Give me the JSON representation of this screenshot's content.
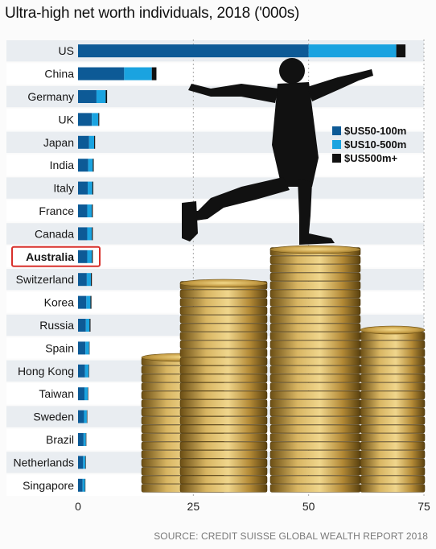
{
  "title": "Ultra-high net worth individuals, 2018 ('000s)",
  "source": "SOURCE: CREDIT SUISSE GLOBAL WEALTH REPORT 2018",
  "colors": {
    "s1": "#0d5a96",
    "s2": "#1aa3e0",
    "s3": "#111111",
    "grid": "#a8a8a8",
    "highlight": "#d8302b",
    "row_a": "#e9edf1",
    "row_b": "#ffffff"
  },
  "chart_data": {
    "type": "bar",
    "orientation": "horizontal",
    "stacked": true,
    "title": "Ultra-high net worth individuals, 2018 ('000s)",
    "categories": [
      "US",
      "China",
      "Germany",
      "UK",
      "Japan",
      "India",
      "Italy",
      "France",
      "Canada",
      "Australia",
      "Switzerland",
      "Korea",
      "Russia",
      "Spain",
      "Hong Kong",
      "Taiwan",
      "Sweden",
      "Brazil",
      "Netherlands",
      "Singapore"
    ],
    "highlight": "Australia",
    "series": [
      {
        "name": "$US50-100m",
        "values": [
          50,
          10,
          4,
          3,
          2.4,
          2.2,
          2.1,
          2,
          2,
          2,
          1.9,
          1.8,
          1.7,
          1.6,
          1.5,
          1.4,
          1.3,
          1.2,
          1.1,
          1
        ]
      },
      {
        "name": "$US10-500m",
        "values": [
          19,
          6,
          2,
          1.4,
          1.1,
          1,
          1,
          1,
          1,
          1,
          0.9,
          0.9,
          0.8,
          0.8,
          0.8,
          0.7,
          0.6,
          0.5,
          0.5,
          0.5
        ]
      },
      {
        "name": "$US500m+",
        "values": [
          2,
          1,
          0.3,
          0.2,
          0.2,
          0.2,
          0.2,
          0.2,
          0.2,
          0.2,
          0.2,
          0.2,
          0.2,
          0.1,
          0.1,
          0.1,
          0.1,
          0.1,
          0.1,
          0.1
        ]
      }
    ],
    "xlim": [
      0,
      75
    ],
    "xticks": [
      "0",
      "25",
      "50",
      "75"
    ],
    "grid": true,
    "legend": "top-right"
  }
}
